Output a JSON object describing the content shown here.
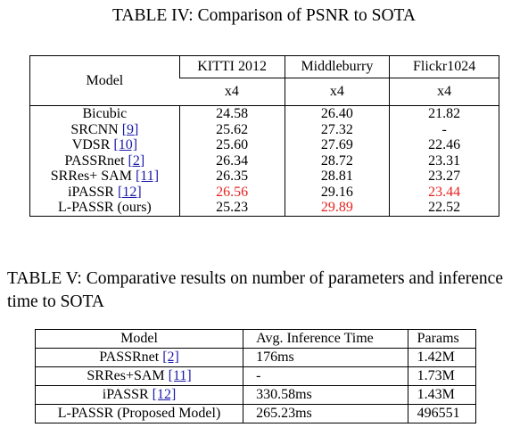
{
  "table4": {
    "caption": "TABLE IV: Comparison of PSNR to SOTA",
    "col_model": "Model",
    "datasets": [
      "KITTI 2012",
      "Middleburry",
      "Flickr1024"
    ],
    "scales": [
      "x4",
      "x4",
      "x4"
    ],
    "rows": [
      {
        "model": "Bicubic",
        "ref": "",
        "values": [
          "24.58",
          "26.40",
          "21.82"
        ]
      },
      {
        "model": "SRCNN",
        "ref": "[9]",
        "values": [
          "25.62",
          "27.32",
          "-"
        ]
      },
      {
        "model": "VDSR",
        "ref": "[10]",
        "values": [
          "25.60",
          "27.69",
          "22.46"
        ]
      },
      {
        "model": "PASSRnet",
        "ref": "[2]",
        "values": [
          "26.34",
          "28.72",
          "23.31"
        ]
      },
      {
        "model": "SRRes+ SAM",
        "ref": "[11]",
        "values": [
          "26.35",
          "28.81",
          "23.27"
        ]
      },
      {
        "model": "iPASSR",
        "ref": "[12]",
        "values": [
          "26.56",
          "29.16",
          "23.44"
        ]
      },
      {
        "model": "L-PASSR (ours)",
        "ref": "",
        "values": [
          "25.23",
          "29.89",
          "22.52"
        ]
      }
    ],
    "highlight_color": "#e8231f"
  },
  "table5": {
    "caption": "TABLE V: Comparative results on number of parameters and inference time to SOTA",
    "headers": [
      "Model",
      "Avg. Inference Time",
      "Params"
    ],
    "rows": [
      {
        "model": "PASSRnet",
        "ref": "[2]",
        "time": "176ms",
        "params": "1.42M"
      },
      {
        "model": "SRRes+SAM",
        "ref": "[11]",
        "time": "-",
        "params": "1.73M"
      },
      {
        "model": "iPASSR",
        "ref": "[12]",
        "time": "330.58ms",
        "params": "1.43M"
      },
      {
        "model": "L-PASSR (Proposed Model)",
        "ref": "",
        "time": "265.23ms",
        "params": "496551"
      }
    ]
  }
}
